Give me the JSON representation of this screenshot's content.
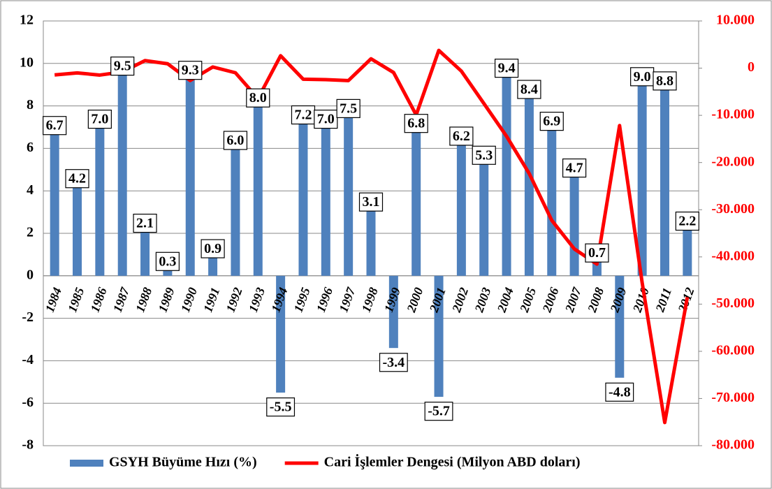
{
  "chart_data": {
    "type": "bar",
    "categories": [
      "1984",
      "1985",
      "1986",
      "1987",
      "1988",
      "1989",
      "1990",
      "1991",
      "1992",
      "1993",
      "1994",
      "1995",
      "1996",
      "1997",
      "1998",
      "1999",
      "2000",
      "2001",
      "2002",
      "2003",
      "2004",
      "2005",
      "2006",
      "2007",
      "2008",
      "2009",
      "2010",
      "2011",
      "2012"
    ],
    "series": [
      {
        "name": "GSYH Büyüme Hızı (%)",
        "type": "bar",
        "color": "#4f81bd",
        "values": [
          6.7,
          4.2,
          7.0,
          9.5,
          2.1,
          0.3,
          9.3,
          0.9,
          6.0,
          8.0,
          -5.5,
          7.2,
          7.0,
          7.5,
          3.1,
          -3.4,
          6.8,
          -5.7,
          6.2,
          5.3,
          9.4,
          8.4,
          6.9,
          4.7,
          0.7,
          -4.8,
          9.0,
          8.8,
          2.2
        ],
        "value_labels": [
          "6.7",
          "4.2",
          "7.0",
          "9.5",
          "2.1",
          "0.3",
          "9.3",
          "0.9",
          "6.0",
          "8.0",
          "-5.5",
          "7.2",
          "7.0",
          "7.5",
          "3.1",
          "-3.4",
          "6.8",
          "-5.7",
          "6.2",
          "5.3",
          "9.4",
          "8.4",
          "6.9",
          "4.7",
          "0.7",
          "-4.8",
          "9.0",
          "8.8",
          "2.2"
        ]
      },
      {
        "name": "Cari İşlemler Dengesi (Milyon ABD doları)",
        "type": "line",
        "axis": "y2",
        "color": "#ff0000",
        "values": [
          -1439,
          -1013,
          -1465,
          -806,
          1596,
          938,
          -2625,
          250,
          -974,
          -6433,
          2631,
          -2339,
          -2437,
          -2638,
          1984,
          -925,
          -9920,
          3760,
          -626,
          -7515,
          -14431,
          -22309,
          -32249,
          -38311,
          -41524,
          -12168,
          -45447,
          -75087,
          -48535
        ]
      }
    ],
    "ylim": [
      -8,
      12
    ],
    "yticks": [
      -8,
      -6,
      -4,
      -2,
      0,
      2,
      4,
      6,
      8,
      10,
      12
    ],
    "y2lim": [
      -80000,
      10000
    ],
    "y2ticks": [
      {
        "value": -80000,
        "label": "-80.000"
      },
      {
        "value": -70000,
        "label": "-70.000"
      },
      {
        "value": -60000,
        "label": "-60.000"
      },
      {
        "value": -50000,
        "label": "-50.000"
      },
      {
        "value": -40000,
        "label": "-40.000"
      },
      {
        "value": -30000,
        "label": "-30.000"
      },
      {
        "value": -20000,
        "label": "-20.000"
      },
      {
        "value": -10000,
        "label": "-10.000"
      },
      0,
      {
        "value": 10000,
        "label": "10.000"
      }
    ],
    "grid": true,
    "legend": "bottom"
  }
}
